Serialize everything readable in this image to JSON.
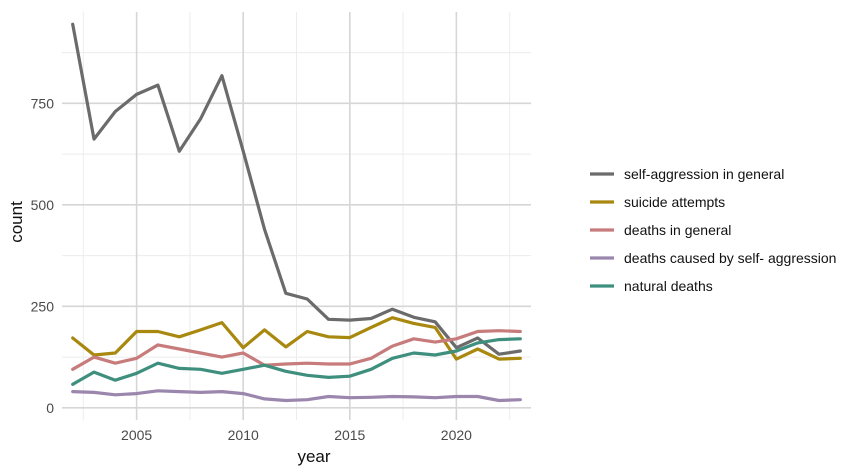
{
  "chart_data": {
    "type": "line",
    "title": "",
    "xlabel": "year",
    "ylabel": "count",
    "xlim": [
      2001.5,
      2023.5
    ],
    "ylim": [
      -30,
      975
    ],
    "x_ticks": [
      2005,
      2010,
      2015,
      2020
    ],
    "y_ticks": [
      0,
      250,
      500,
      750
    ],
    "grid": true,
    "legend_position": "right",
    "x": [
      2002,
      2003,
      2004,
      2005,
      2006,
      2007,
      2008,
      2009,
      2010,
      2011,
      2012,
      2013,
      2014,
      2015,
      2016,
      2017,
      2018,
      2019,
      2020,
      2021,
      2022,
      2023
    ],
    "series": [
      {
        "name": "self-aggression in general",
        "color": "#6b6b6b",
        "values": [
          945,
          662,
          730,
          772,
          795,
          632,
          712,
          818,
          632,
          440,
          282,
          268,
          218,
          216,
          220,
          243,
          223,
          212,
          148,
          172,
          132,
          140
        ]
      },
      {
        "name": "suicide attempts",
        "color": "#a8880f",
        "values": [
          172,
          130,
          135,
          188,
          188,
          175,
          192,
          210,
          148,
          192,
          150,
          188,
          175,
          173,
          198,
          222,
          208,
          198,
          120,
          145,
          120,
          122
        ]
      },
      {
        "name": "deaths in general",
        "color": "#c77b7b",
        "values": [
          95,
          125,
          110,
          122,
          155,
          145,
          135,
          125,
          135,
          105,
          108,
          110,
          108,
          108,
          122,
          152,
          170,
          162,
          170,
          188,
          190,
          188
        ]
      },
      {
        "name": "deaths caused by self- aggression",
        "color": "#9b86ad",
        "values": [
          40,
          38,
          32,
          35,
          42,
          40,
          38,
          40,
          35,
          22,
          18,
          20,
          28,
          25,
          26,
          28,
          27,
          25,
          28,
          28,
          18,
          20
        ]
      },
      {
        "name": "natural deaths",
        "color": "#3f8f7f",
        "values": [
          58,
          88,
          68,
          85,
          110,
          97,
          95,
          85,
          95,
          105,
          90,
          80,
          75,
          78,
          95,
          122,
          135,
          130,
          140,
          160,
          168,
          170
        ]
      }
    ]
  }
}
